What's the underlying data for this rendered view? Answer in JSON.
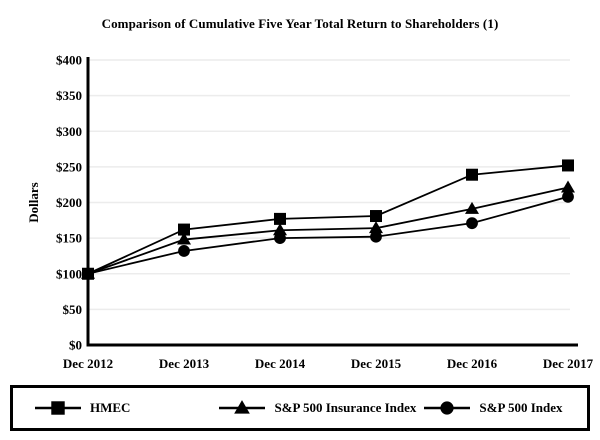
{
  "page": {
    "background": "#ffffff"
  },
  "chart_data": {
    "type": "line",
    "title": "Comparison of Cumulative Five Year Total Return to Shareholders (1)",
    "ylabel": "Dollars",
    "xlabel": "",
    "categories": [
      "Dec 2012",
      "Dec 2013",
      "Dec 2014",
      "Dec 2015",
      "Dec 2016",
      "Dec 2017"
    ],
    "series": [
      {
        "name": "HMEC",
        "marker": "square",
        "values": [
          100,
          162,
          177,
          181,
          239,
          252
        ]
      },
      {
        "name": "S&P 500 Insurance Index",
        "marker": "triangle",
        "values": [
          100,
          148,
          161,
          164,
          191,
          221
        ]
      },
      {
        "name": "S&P 500 Index",
        "marker": "circle",
        "values": [
          100,
          132,
          150,
          152,
          171,
          208
        ]
      }
    ],
    "ylim": [
      0,
      400
    ],
    "ytick_step": 50,
    "ytick_labels": [
      "$0",
      "$50",
      "$100",
      "$150",
      "$200",
      "$250",
      "$300",
      "$350",
      "$400"
    ],
    "grid": "horizontal",
    "legend_position": "bottom",
    "line_color": "#000000",
    "axis_color": "#000000",
    "grid_color": "#ececec",
    "text_color": "#000000"
  }
}
